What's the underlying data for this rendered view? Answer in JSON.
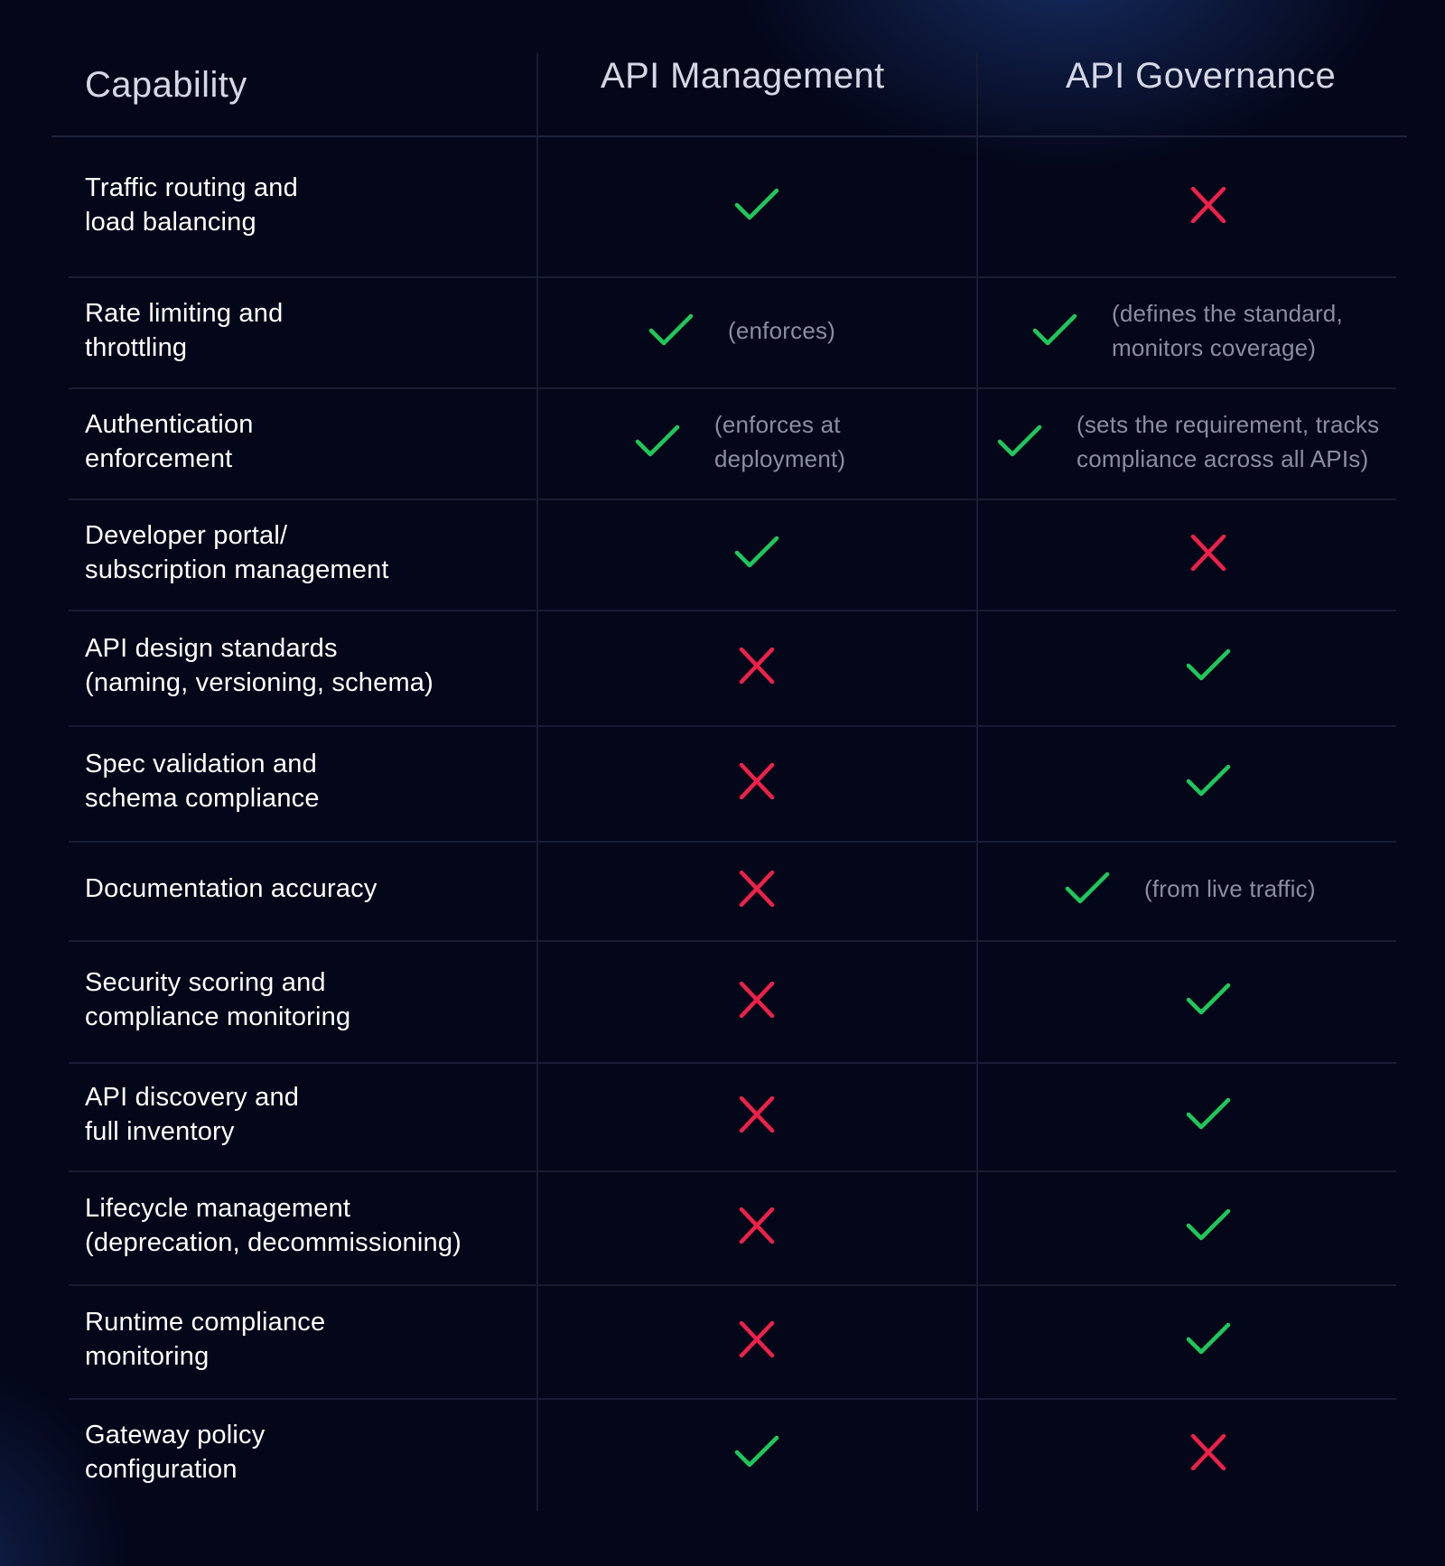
{
  "header": {
    "capability": "Capability",
    "management": "API Management",
    "governance": "API Governance"
  },
  "colors": {
    "check": "#1ec85a",
    "cross": "#f0204a",
    "note": "#8a8ea1",
    "background": "#04071a"
  },
  "rows": [
    {
      "label": "Traffic routing and\nload balancing",
      "management": {
        "status": "check",
        "note": ""
      },
      "governance": {
        "status": "cross",
        "note": ""
      }
    },
    {
      "label": "Rate limiting and\nthrottling",
      "management": {
        "status": "check",
        "note": "(enforces)"
      },
      "governance": {
        "status": "check",
        "note": "(defines the standard,\nmonitors coverage)"
      }
    },
    {
      "label": "Authentication\nenforcement",
      "management": {
        "status": "check",
        "note": "(enforces at\ndeployment)"
      },
      "governance": {
        "status": "check",
        "note": "(sets the requirement, tracks\ncompliance across all APIs)"
      }
    },
    {
      "label": "Developer portal/\nsubscription management",
      "management": {
        "status": "check",
        "note": ""
      },
      "governance": {
        "status": "cross",
        "note": ""
      }
    },
    {
      "label": "API design standards\n(naming, versioning, schema)",
      "management": {
        "status": "cross",
        "note": ""
      },
      "governance": {
        "status": "check",
        "note": ""
      }
    },
    {
      "label": "Spec validation and\nschema compliance",
      "management": {
        "status": "cross",
        "note": ""
      },
      "governance": {
        "status": "check",
        "note": ""
      }
    },
    {
      "label": "Documentation accuracy",
      "management": {
        "status": "cross",
        "note": ""
      },
      "governance": {
        "status": "check",
        "note": "(from live traffic)"
      }
    },
    {
      "label": "Security scoring and\ncompliance monitoring",
      "management": {
        "status": "cross",
        "note": ""
      },
      "governance": {
        "status": "check",
        "note": ""
      }
    },
    {
      "label": "API discovery and\nfull inventory",
      "management": {
        "status": "cross",
        "note": ""
      },
      "governance": {
        "status": "check",
        "note": ""
      }
    },
    {
      "label": "Lifecycle management\n(deprecation, decommissioning)",
      "management": {
        "status": "cross",
        "note": ""
      },
      "governance": {
        "status": "check",
        "note": ""
      }
    },
    {
      "label": "Runtime compliance\nmonitoring",
      "management": {
        "status": "cross",
        "note": ""
      },
      "governance": {
        "status": "check",
        "note": ""
      }
    },
    {
      "label": "Gateway policy\nconfiguration",
      "management": {
        "status": "check",
        "note": ""
      },
      "governance": {
        "status": "cross",
        "note": ""
      }
    }
  ]
}
